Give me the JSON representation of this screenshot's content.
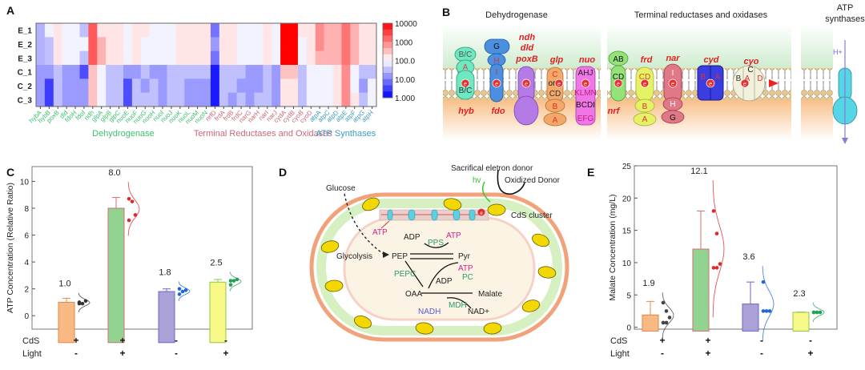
{
  "panel_labels": {
    "a": "A",
    "b": "B",
    "c": "C",
    "d": "D",
    "e": "E"
  },
  "panel_b": {
    "title_dehydrogenase": "Dehydrogenase",
    "title_terminal": "Terminal reductases and oxidases",
    "title_atp_1": "ATP",
    "title_atp_2": "synthases",
    "proton": "H+",
    "electron": "e",
    "genes": {
      "hyb": "hyb",
      "fdo": "fdo",
      "ndh": "ndh",
      "dld": "dld",
      "poxB": "poxB",
      "glp": "glp",
      "nuo": "nuo",
      "nrf": "nrf",
      "frd": "frd",
      "nar": "nar",
      "cyd": "cyd",
      "cyo": "cyo"
    },
    "subunits": [
      "B/C",
      "A",
      "B/C",
      "G",
      "H",
      "I",
      "C",
      "or",
      "CD",
      "B",
      "A",
      "AHJ",
      "KLMN",
      "BCDI",
      "EFG",
      "AB",
      "CD",
      "CD",
      "B",
      "A",
      "I",
      "H",
      "G",
      "B",
      "A",
      "B",
      "A",
      "C",
      "D"
    ],
    "protein_colors": {
      "hyb": "#6ee8c0",
      "fdo": "#4a8fe0",
      "ndh": "#b47ae6",
      "glp": "#f2a868",
      "nuo": "#f075e6",
      "nrf": "#96e27a",
      "frd": "#e6f266",
      "nar": "#e07888",
      "cyd": "#3a3ee0",
      "cyo": "#f2f2dc",
      "atp": "#55d6e6"
    }
  },
  "panel_d": {
    "donor": "Sacrifical eletron donor",
    "oxidized": "Oxidized Donor",
    "hv": "hv",
    "glucose": "Glucose",
    "cds_cluster": "CdS cluster",
    "atp_membrane": "ATP",
    "adp1": "ADP",
    "pps": "PPS",
    "atp1": "ATP",
    "glycolysis": "Glycolysis",
    "pep": "PEP",
    "pyr": "Pyr",
    "atp2": "ATP",
    "pepc": "PEPC",
    "pc": "PC",
    "adp2": "ADP",
    "oaa": "OAA",
    "malate": "Malate",
    "mdh": "MDH",
    "nadh": "NADH",
    "nad": "NAD+",
    "electron": "e"
  },
  "chart_data": [
    {
      "type": "heatmap",
      "rows": [
        "E_1",
        "E_2",
        "E_3",
        "C_1",
        "C_2",
        "C_3"
      ],
      "columns": [
        "hybA",
        "hybB",
        "poxB",
        "dld",
        "fdoH",
        "fdoI",
        "ndh",
        "glpA",
        "glpB",
        "glpC",
        "nuoE",
        "nuoF",
        "nuoG",
        "nuoH",
        "nuoI",
        "nuoJ",
        "nuoK",
        "nuoL",
        "nuoM",
        "nuoN",
        "nrfD",
        "frdA",
        "frdB",
        "frdC",
        "narG",
        "narH",
        "narI",
        "narJ",
        "cydA",
        "cydB",
        "cyoB",
        "cyoD",
        "atpA",
        "atpC",
        "atpD",
        "atpE",
        "atpF",
        "atpG",
        "atpH"
      ],
      "values": [
        [
          25,
          80,
          160,
          80,
          80,
          32,
          2000,
          160,
          160,
          160,
          80,
          160,
          160,
          80,
          80,
          80,
          160,
          160,
          160,
          160,
          8,
          160,
          160,
          80,
          80,
          80,
          160,
          80,
          10000,
          10000,
          160,
          160,
          800,
          400,
          400,
          1250,
          400,
          160,
          160
        ],
        [
          25,
          32,
          160,
          80,
          80,
          80,
          2000,
          400,
          160,
          160,
          80,
          160,
          80,
          80,
          80,
          80,
          160,
          160,
          160,
          160,
          16,
          160,
          160,
          80,
          80,
          80,
          160,
          80,
          10000,
          10000,
          80,
          160,
          800,
          400,
          400,
          1250,
          400,
          160,
          160
        ],
        [
          25,
          32,
          160,
          80,
          80,
          32,
          2000,
          400,
          160,
          160,
          80,
          160,
          80,
          80,
          80,
          80,
          160,
          160,
          160,
          160,
          8,
          160,
          160,
          80,
          80,
          80,
          160,
          80,
          10000,
          10000,
          80,
          160,
          400,
          400,
          400,
          1250,
          400,
          160,
          160
        ],
        [
          16,
          16,
          32,
          16,
          16,
          4,
          300,
          80,
          32,
          32,
          16,
          16,
          32,
          16,
          16,
          32,
          32,
          32,
          32,
          32,
          1.6,
          32,
          32,
          32,
          16,
          16,
          32,
          16,
          300,
          300,
          32,
          80,
          80,
          80,
          160,
          800,
          80,
          32,
          32
        ],
        [
          16,
          3,
          32,
          16,
          16,
          16,
          300,
          80,
          32,
          32,
          4,
          32,
          16,
          32,
          16,
          32,
          32,
          16,
          16,
          16,
          1.6,
          32,
          32,
          16,
          16,
          16,
          32,
          16,
          160,
          160,
          32,
          80,
          80,
          80,
          160,
          800,
          80,
          16,
          80
        ],
        [
          16,
          3,
          32,
          16,
          16,
          16,
          300,
          80,
          32,
          32,
          4,
          32,
          32,
          32,
          16,
          32,
          32,
          16,
          16,
          16,
          1.6,
          32,
          16,
          32,
          16,
          32,
          32,
          16,
          160,
          160,
          32,
          80,
          80,
          80,
          160,
          800,
          160,
          32,
          80
        ]
      ],
      "scale": "log",
      "colorbar_ticks": [
        "10000",
        "1000",
        "100.0",
        "10.00",
        "1.000"
      ],
      "colors": {
        "low": "#0000ff",
        "mid": "#ffffff",
        "high": "#ff0000"
      },
      "groups": [
        {
          "name": "Dehydrogenase",
          "first": "hybA",
          "last": "nuoN",
          "color": "#3dbf6e"
        },
        {
          "name": "Terminal Reductases and Oxidases",
          "first": "nrfD",
          "last": "cyoD",
          "color": "#c86878"
        },
        {
          "name": "ATP Synthases",
          "first": "atpA",
          "last": "atpH",
          "color": "#3a9cc0"
        }
      ]
    },
    {
      "type": "bar",
      "ylabel": "ATP Concentration (Relative Ratio)",
      "ylim": [
        -1,
        11.1
      ],
      "yticks": [
        0,
        2,
        4,
        6,
        8,
        10
      ],
      "condition_labels": [
        "CdS",
        "Light"
      ],
      "cds": [
        "+",
        "+",
        "-",
        "-"
      ],
      "light": [
        "-",
        "+",
        "-",
        "+"
      ],
      "values": [
        1.0,
        8.0,
        1.8,
        2.5
      ],
      "value_labels": [
        "1.0",
        "8.0",
        "1.8",
        "2.5"
      ],
      "errors": [
        0.3,
        0.8,
        0.2,
        0.2
      ],
      "points": [
        [
          0.9,
          0.9,
          1.1,
          1.0
        ],
        [
          8.7,
          8.5,
          7.5,
          7.1
        ],
        [
          1.6,
          1.8,
          1.9,
          2.0
        ],
        [
          2.6,
          2.6,
          2.7,
          2.3
        ]
      ],
      "bar_colors": [
        "#f9b983",
        "#92d392",
        "#aba0d8",
        "#f8f888"
      ],
      "edge_colors": [
        "#e0884a",
        "#d07070",
        "#6a6ac8",
        "#8cc84a"
      ],
      "point_colors": [
        "#333333",
        "#e02828",
        "#2266d0",
        "#22a055"
      ]
    },
    {
      "type": "bar",
      "ylabel": "Malate Concentration (mg/L)",
      "ylim": [
        -0.3,
        25
      ],
      "yticks": [
        0,
        5,
        10,
        15,
        20,
        25
      ],
      "condition_labels": [
        "CdS",
        "Light"
      ],
      "cds": [
        "+",
        "+",
        "-",
        "-"
      ],
      "light": [
        "-",
        "+",
        "-",
        "+"
      ],
      "values": [
        1.9,
        12.1,
        3.6,
        2.3
      ],
      "value_labels": [
        "1.9",
        "12.1",
        "3.6",
        "2.3"
      ],
      "errors": [
        2.1,
        5.9,
        3.4,
        0.05
      ],
      "points": [
        [
          3.8,
          2.5,
          1.5,
          0.7,
          0.7
        ],
        [
          18,
          14.5,
          9.8,
          9.2,
          9.2
        ],
        [
          7,
          2.5,
          2.5,
          2.5
        ],
        [
          2.3,
          2.3,
          2.3,
          2.3
        ]
      ],
      "bar_colors": [
        "#f9b983",
        "#92d392",
        "#aba0d8",
        "#f8f888"
      ],
      "edge_colors": [
        "#e0884a",
        "#d07070",
        "#6a6ac8",
        "#8cc84a"
      ],
      "point_colors": [
        "#444444",
        "#e02828",
        "#2266d0",
        "#22a055"
      ]
    }
  ]
}
